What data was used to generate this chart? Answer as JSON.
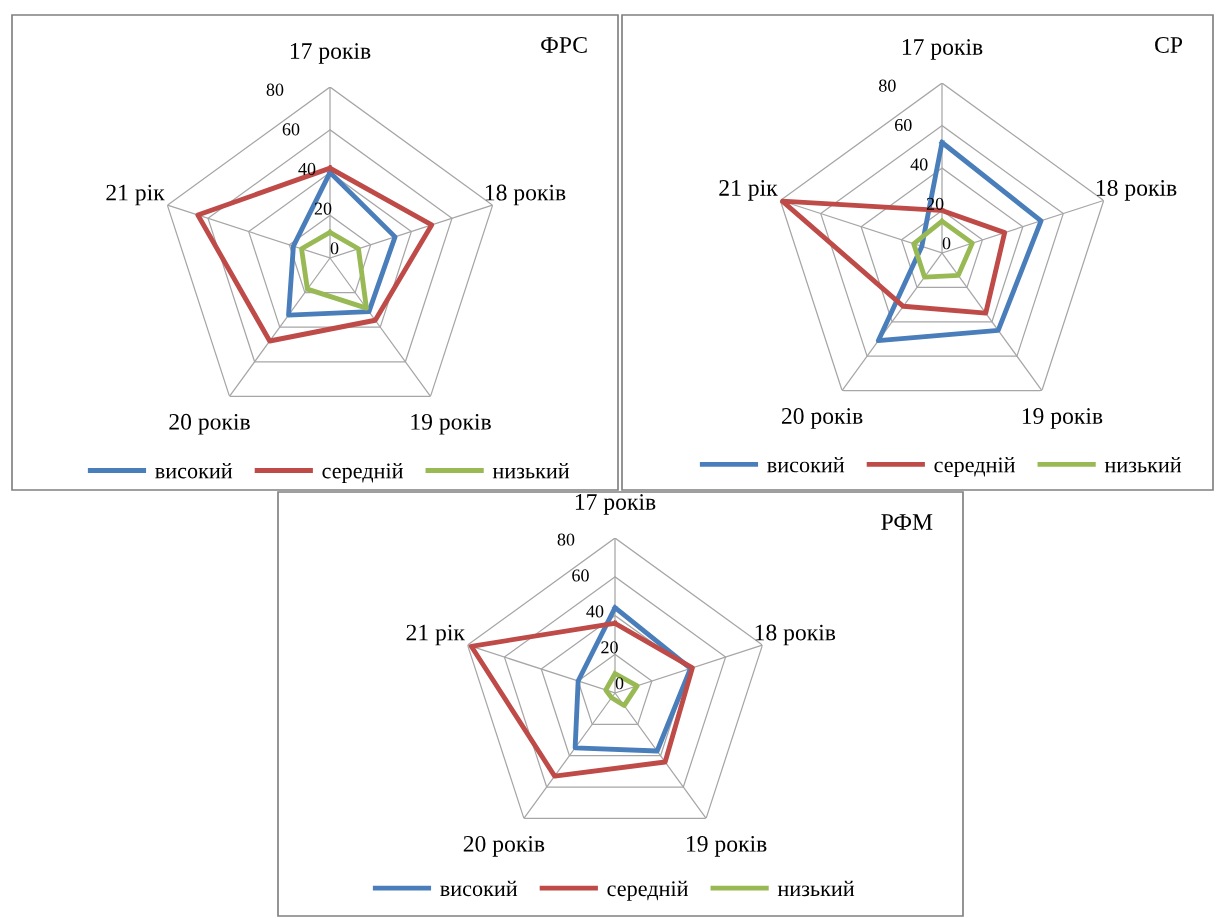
{
  "chart_data": [
    {
      "type": "radar",
      "title": "ФРС",
      "categories": [
        "17 років",
        "18 років",
        "19 років",
        "20 років",
        "21 рік"
      ],
      "ylim": [
        0,
        80
      ],
      "yticks": [
        0,
        20,
        40,
        60,
        80
      ],
      "grid": true,
      "legend": "bottom",
      "marker": "none",
      "line_style": "solid",
      "series": [
        {
          "name": "високий",
          "color": "#4a7ebb",
          "values": [
            40,
            32,
            31,
            33,
            18
          ]
        },
        {
          "name": "середній",
          "color": "#be4b48",
          "values": [
            42,
            50,
            36,
            48,
            65
          ]
        },
        {
          "name": "низький",
          "color": "#98b954",
          "values": [
            12,
            14,
            29,
            18,
            14
          ]
        }
      ]
    },
    {
      "type": "radar",
      "title": "СР",
      "categories": [
        "17 років",
        "18 років",
        "19 років",
        "20 років",
        "21 рік"
      ],
      "ylim": [
        0,
        80
      ],
      "yticks": [
        0,
        20,
        40,
        60,
        80
      ],
      "grid": true,
      "legend": "bottom",
      "marker": "none",
      "line_style": "solid",
      "series": [
        {
          "name": "високий",
          "color": "#4a7ebb",
          "values": [
            52,
            49,
            45,
            51,
            10
          ]
        },
        {
          "name": "середній",
          "color": "#be4b48",
          "values": [
            20,
            31,
            35,
            31,
            79
          ]
        },
        {
          "name": "низький",
          "color": "#98b954",
          "values": [
            15,
            15,
            13,
            14,
            14
          ]
        }
      ]
    },
    {
      "type": "radar",
      "title": "РФМ",
      "categories": [
        "17 років",
        "18 років",
        "19 років",
        "20 років",
        "21 рік"
      ],
      "ylim": [
        0,
        80
      ],
      "yticks": [
        0,
        20,
        40,
        60,
        80
      ],
      "grid": true,
      "legend": "bottom",
      "marker": "none",
      "line_style": "solid",
      "series": [
        {
          "name": "високий",
          "color": "#4a7ebb",
          "values": [
            44,
            41,
            37,
            35,
            20
          ]
        },
        {
          "name": "середній",
          "color": "#be4b48",
          "values": [
            36,
            42,
            44,
            53,
            78
          ]
        },
        {
          "name": "низький",
          "color": "#98b954",
          "values": [
            10,
            12,
            8,
            3,
            5
          ]
        }
      ]
    }
  ]
}
